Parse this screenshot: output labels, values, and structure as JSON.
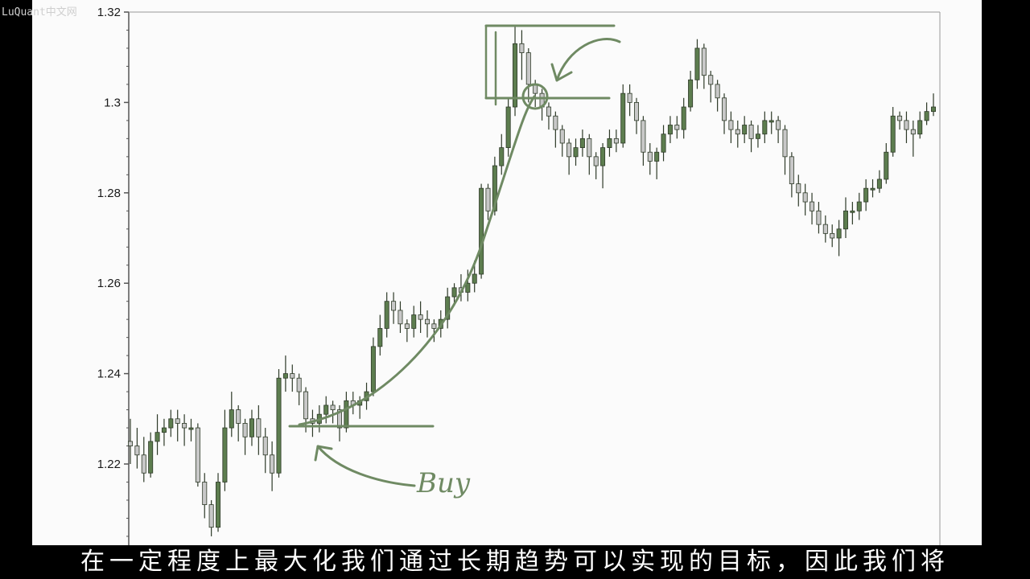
{
  "watermark": "LuQuant中文网",
  "subtitle": "在一定程度上最大化我们通过长期趋势可以实现的目标，因此我们将",
  "colors": {
    "bull": "#5d7d4f",
    "bear": "#c8c8c8",
    "annotation": "#6f8a63",
    "axis": "#555555",
    "panel": "#fbfbfb"
  },
  "chart_data": {
    "type": "candlestick",
    "ylim": [
      1.2,
      1.32
    ],
    "yticks": [
      "1.22",
      "1.24",
      "1.26",
      "1.28",
      "1.3",
      "1.32"
    ],
    "ytick_values": [
      1.22,
      1.24,
      1.26,
      1.28,
      1.3,
      1.32
    ],
    "grid": false,
    "annotation_text": "Buy",
    "candles": [
      [
        1.225,
        1.224,
        1.23,
        1.22
      ],
      [
        1.224,
        1.222,
        1.228,
        1.219
      ],
      [
        1.222,
        1.218,
        1.226,
        1.216
      ],
      [
        1.218,
        1.225,
        1.227,
        1.217
      ],
      [
        1.225,
        1.227,
        1.231,
        1.222
      ],
      [
        1.227,
        1.228,
        1.23,
        1.224
      ],
      [
        1.228,
        1.23,
        1.232,
        1.226
      ],
      [
        1.23,
        1.229,
        1.232,
        1.225
      ],
      [
        1.229,
        1.228,
        1.231,
        1.224
      ],
      [
        1.228,
        1.228,
        1.23,
        1.225
      ],
      [
        1.228,
        1.216,
        1.229,
        1.215
      ],
      [
        1.216,
        1.211,
        1.218,
        1.208
      ],
      [
        1.211,
        1.206,
        1.212,
        1.204
      ],
      [
        1.206,
        1.216,
        1.218,
        1.205
      ],
      [
        1.216,
        1.228,
        1.232,
        1.214
      ],
      [
        1.228,
        1.232,
        1.236,
        1.226
      ],
      [
        1.232,
        1.229,
        1.233,
        1.225
      ],
      [
        1.229,
        1.226,
        1.23,
        1.222
      ],
      [
        1.226,
        1.23,
        1.232,
        1.224
      ],
      [
        1.23,
        1.226,
        1.233,
        1.222
      ],
      [
        1.226,
        1.222,
        1.228,
        1.218
      ],
      [
        1.222,
        1.218,
        1.225,
        1.214
      ],
      [
        1.218,
        1.239,
        1.241,
        1.217
      ],
      [
        1.239,
        1.24,
        1.244,
        1.236
      ],
      [
        1.24,
        1.239,
        1.242,
        1.236
      ],
      [
        1.239,
        1.236,
        1.24,
        1.233
      ],
      [
        1.236,
        1.23,
        1.237,
        1.227
      ],
      [
        1.23,
        1.229,
        1.232,
        1.226
      ],
      [
        1.229,
        1.231,
        1.233,
        1.227
      ],
      [
        1.231,
        1.233,
        1.235,
        1.229
      ],
      [
        1.233,
        1.232,
        1.234,
        1.229
      ],
      [
        1.232,
        1.228,
        1.233,
        1.225
      ],
      [
        1.228,
        1.234,
        1.236,
        1.227
      ],
      [
        1.234,
        1.233,
        1.236,
        1.231
      ],
      [
        1.233,
        1.234,
        1.235,
        1.23
      ],
      [
        1.234,
        1.236,
        1.238,
        1.232
      ],
      [
        1.236,
        1.246,
        1.248,
        1.235
      ],
      [
        1.246,
        1.25,
        1.253,
        1.244
      ],
      [
        1.25,
        1.256,
        1.258,
        1.248
      ],
      [
        1.256,
        1.254,
        1.258,
        1.251
      ],
      [
        1.254,
        1.251,
        1.256,
        1.249
      ],
      [
        1.251,
        1.25,
        1.252,
        1.247
      ],
      [
        1.25,
        1.253,
        1.255,
        1.248
      ],
      [
        1.253,
        1.252,
        1.256,
        1.249
      ],
      [
        1.252,
        1.251,
        1.254,
        1.248
      ],
      [
        1.251,
        1.25,
        1.252,
        1.247
      ],
      [
        1.25,
        1.252,
        1.254,
        1.248
      ],
      [
        1.252,
        1.257,
        1.259,
        1.25
      ],
      [
        1.257,
        1.259,
        1.26,
        1.255
      ],
      [
        1.259,
        1.258,
        1.262,
        1.256
      ],
      [
        1.258,
        1.26,
        1.263,
        1.256
      ],
      [
        1.26,
        1.262,
        1.265,
        1.258
      ],
      [
        1.262,
        1.281,
        1.282,
        1.261
      ],
      [
        1.281,
        1.276,
        1.282,
        1.274
      ],
      [
        1.276,
        1.286,
        1.288,
        1.275
      ],
      [
        1.286,
        1.29,
        1.293,
        1.284
      ],
      [
        1.29,
        1.299,
        1.301,
        1.288
      ],
      [
        1.299,
        1.313,
        1.317,
        1.297
      ],
      [
        1.313,
        1.311,
        1.316,
        1.305
      ],
      [
        1.311,
        1.304,
        1.312,
        1.3
      ],
      [
        1.304,
        1.302,
        1.305,
        1.299
      ],
      [
        1.302,
        1.299,
        1.303,
        1.296
      ],
      [
        1.299,
        1.297,
        1.3,
        1.294
      ],
      [
        1.297,
        1.294,
        1.298,
        1.29
      ],
      [
        1.294,
        1.291,
        1.295,
        1.288
      ],
      [
        1.291,
        1.288,
        1.292,
        1.284
      ],
      [
        1.288,
        1.29,
        1.292,
        1.286
      ],
      [
        1.29,
        1.292,
        1.294,
        1.288
      ],
      [
        1.292,
        1.288,
        1.293,
        1.284
      ],
      [
        1.288,
        1.286,
        1.289,
        1.283
      ],
      [
        1.286,
        1.29,
        1.291,
        1.281
      ],
      [
        1.29,
        1.292,
        1.294,
        1.288
      ],
      [
        1.292,
        1.291,
        1.294,
        1.289
      ],
      [
        1.291,
        1.302,
        1.304,
        1.29
      ],
      [
        1.302,
        1.3,
        1.304,
        1.297
      ],
      [
        1.3,
        1.296,
        1.301,
        1.293
      ],
      [
        1.296,
        1.289,
        1.297,
        1.286
      ],
      [
        1.289,
        1.287,
        1.291,
        1.284
      ],
      [
        1.287,
        1.289,
        1.29,
        1.283
      ],
      [
        1.289,
        1.293,
        1.295,
        1.287
      ],
      [
        1.293,
        1.295,
        1.297,
        1.291
      ],
      [
        1.295,
        1.294,
        1.297,
        1.292
      ],
      [
        1.294,
        1.299,
        1.301,
        1.292
      ],
      [
        1.299,
        1.305,
        1.307,
        1.298
      ],
      [
        1.305,
        1.312,
        1.314,
        1.303
      ],
      [
        1.312,
        1.306,
        1.313,
        1.303
      ],
      [
        1.306,
        1.304,
        1.307,
        1.3
      ],
      [
        1.304,
        1.301,
        1.305,
        1.298
      ],
      [
        1.301,
        1.296,
        1.302,
        1.293
      ],
      [
        1.296,
        1.294,
        1.298,
        1.291
      ],
      [
        1.294,
        1.293,
        1.296,
        1.29
      ],
      [
        1.293,
        1.295,
        1.297,
        1.291
      ],
      [
        1.295,
        1.292,
        1.296,
        1.289
      ],
      [
        1.292,
        1.293,
        1.295,
        1.29
      ],
      [
        1.293,
        1.296,
        1.298,
        1.291
      ],
      [
        1.296,
        1.296,
        1.298,
        1.293
      ],
      [
        1.296,
        1.294,
        1.297,
        1.291
      ],
      [
        1.294,
        1.288,
        1.295,
        1.284
      ],
      [
        1.288,
        1.282,
        1.289,
        1.279
      ],
      [
        1.282,
        1.28,
        1.284,
        1.277
      ],
      [
        1.28,
        1.278,
        1.282,
        1.275
      ],
      [
        1.278,
        1.276,
        1.28,
        1.273
      ],
      [
        1.276,
        1.273,
        1.278,
        1.271
      ],
      [
        1.273,
        1.271,
        1.275,
        1.269
      ],
      [
        1.271,
        1.27,
        1.273,
        1.268
      ],
      [
        1.27,
        1.272,
        1.274,
        1.266
      ],
      [
        1.272,
        1.276,
        1.279,
        1.27
      ],
      [
        1.276,
        1.276,
        1.278,
        1.273
      ],
      [
        1.276,
        1.278,
        1.28,
        1.274
      ],
      [
        1.278,
        1.281,
        1.283,
        1.276
      ],
      [
        1.281,
        1.281,
        1.283,
        1.279
      ],
      [
        1.281,
        1.283,
        1.285,
        1.28
      ],
      [
        1.283,
        1.289,
        1.291,
        1.282
      ],
      [
        1.289,
        1.297,
        1.299,
        1.288
      ],
      [
        1.297,
        1.296,
        1.298,
        1.294
      ],
      [
        1.296,
        1.294,
        1.298,
        1.291
      ],
      [
        1.294,
        1.293,
        1.296,
        1.288
      ],
      [
        1.293,
        1.296,
        1.298,
        1.292
      ],
      [
        1.296,
        1.298,
        1.3,
        1.295
      ],
      [
        1.298,
        1.299,
        1.302,
        1.297
      ]
    ]
  }
}
